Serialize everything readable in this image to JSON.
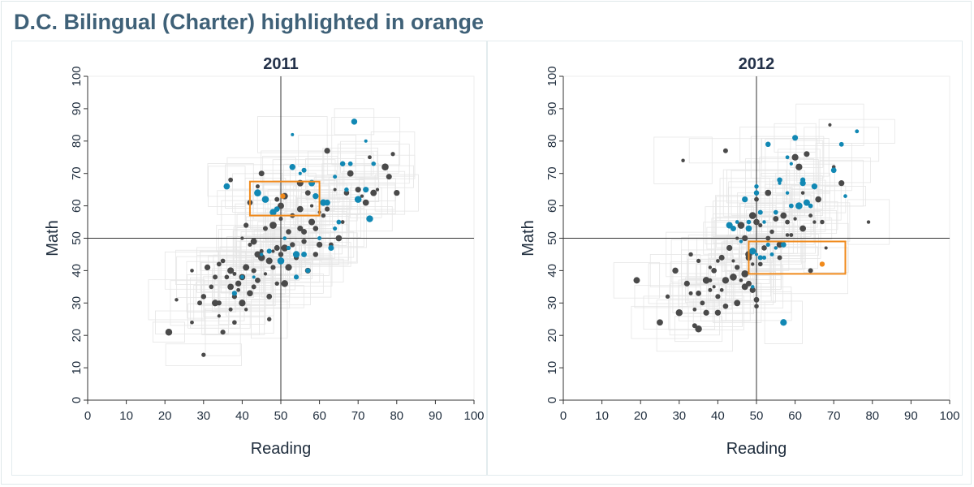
{
  "page": {
    "title": "D.C. Bilingual (Charter) highlighted in orange"
  },
  "colors": {
    "other_school": "#4a4a4a",
    "charter_school": "#1188b4",
    "highlight": "#f08a1c",
    "quadrant_box": "#e6e6e6",
    "axis": "#000000"
  },
  "chart_data": [
    {
      "type": "scatter",
      "title": "2011",
      "xlabel": "Reading",
      "ylabel": "Math",
      "xlim": [
        0,
        100
      ],
      "ylim": [
        0,
        100
      ],
      "xticks": [
        0,
        10,
        20,
        30,
        40,
        50,
        60,
        70,
        80,
        90,
        100
      ],
      "yticks": [
        0,
        10,
        20,
        30,
        40,
        50,
        60,
        70,
        80,
        90,
        100
      ],
      "reference_lines": {
        "x": 50,
        "y": 50
      },
      "highlight": {
        "x": 50.5,
        "y": 63,
        "x_range": [
          42,
          60
        ],
        "y_range": [
          57,
          67.5
        ]
      },
      "series": [
        {
          "group": "other",
          "points": [
            [
              21,
              21
            ],
            [
              23,
              31
            ],
            [
              27,
              24
            ],
            [
              27,
              40
            ],
            [
              29,
              30
            ],
            [
              30,
              32
            ],
            [
              30,
              14
            ],
            [
              31,
              41
            ],
            [
              32,
              35
            ],
            [
              33,
              30
            ],
            [
              33,
              38
            ],
            [
              34,
              30
            ],
            [
              34,
              42
            ],
            [
              34,
              26
            ],
            [
              35,
              21
            ],
            [
              35,
              43
            ],
            [
              36,
              38
            ],
            [
              37,
              28
            ],
            [
              37,
              35
            ],
            [
              37,
              40
            ],
            [
              38,
              39
            ],
            [
              38,
              32
            ],
            [
              38,
              24
            ],
            [
              39,
              36
            ],
            [
              39,
              34
            ],
            [
              40,
              30
            ],
            [
              40,
              38
            ],
            [
              40,
              50
            ],
            [
              41,
              41
            ],
            [
              41,
              28
            ],
            [
              41,
              54
            ],
            [
              42,
              61
            ],
            [
              42,
              48
            ],
            [
              42,
              33
            ],
            [
              43,
              40
            ],
            [
              43,
              49
            ],
            [
              43,
              35
            ],
            [
              44,
              37
            ],
            [
              44,
              45
            ],
            [
              45,
              70
            ],
            [
              45,
              44
            ],
            [
              45,
              46
            ],
            [
              46,
              53
            ],
            [
              46,
              39
            ],
            [
              47,
              32
            ],
            [
              47,
              43
            ],
            [
              47,
              25
            ],
            [
              48,
              54
            ],
            [
              48,
              41
            ],
            [
              48,
              46
            ],
            [
              49,
              62
            ],
            [
              49,
              47
            ],
            [
              49,
              36
            ],
            [
              50,
              60
            ],
            [
              50,
              56
            ],
            [
              50,
              45
            ],
            [
              51,
              47
            ],
            [
              51,
              63
            ],
            [
              51,
              36
            ],
            [
              52,
              52
            ],
            [
              52,
              41
            ],
            [
              53,
              57
            ],
            [
              53,
              48
            ],
            [
              54,
              44
            ],
            [
              55,
              67
            ],
            [
              55,
              59
            ],
            [
              55,
              53
            ],
            [
              56,
              52
            ],
            [
              56,
              49
            ],
            [
              57,
              64
            ],
            [
              57,
              40
            ],
            [
              58,
              55
            ],
            [
              58,
              60
            ],
            [
              59,
              53
            ],
            [
              59,
              45
            ],
            [
              60,
              58
            ],
            [
              60,
              48
            ],
            [
              61,
              57
            ],
            [
              62,
              77
            ],
            [
              62,
              59
            ],
            [
              63,
              48
            ],
            [
              64,
              65
            ],
            [
              65,
              50
            ],
            [
              66,
              55
            ],
            [
              67,
              64
            ],
            [
              68,
              70
            ],
            [
              70,
              65
            ],
            [
              71,
              63
            ],
            [
              72,
              61
            ],
            [
              73,
              75
            ],
            [
              74,
              64
            ],
            [
              75,
              65
            ],
            [
              77,
              72
            ],
            [
              78,
              69
            ],
            [
              79,
              76
            ],
            [
              80,
              64
            ],
            [
              37,
              68
            ],
            [
              44,
              66
            ]
          ]
        },
        {
          "group": "charter",
          "points": [
            [
              36,
              66
            ],
            [
              38,
              33
            ],
            [
              40,
              38
            ],
            [
              43,
              38
            ],
            [
              44,
              64
            ],
            [
              45,
              45
            ],
            [
              46,
              62
            ],
            [
              47,
              46
            ],
            [
              48,
              58
            ],
            [
              49,
              59
            ],
            [
              50,
              43
            ],
            [
              51,
              50
            ],
            [
              52,
              47
            ],
            [
              53,
              72
            ],
            [
              53,
              82
            ],
            [
              54,
              38
            ],
            [
              54,
              45
            ],
            [
              55,
              70
            ],
            [
              56,
              45
            ],
            [
              56,
              71
            ],
            [
              57,
              40
            ],
            [
              58,
              67
            ],
            [
              59,
              63
            ],
            [
              60,
              50
            ],
            [
              61,
              61
            ],
            [
              62,
              61
            ],
            [
              63,
              47
            ],
            [
              64,
              69
            ],
            [
              64,
              53
            ],
            [
              65,
              55
            ],
            [
              66,
              73
            ],
            [
              67,
              65
            ],
            [
              68,
              73
            ],
            [
              68,
              73
            ],
            [
              69,
              86
            ],
            [
              70,
              62
            ],
            [
              72,
              65
            ],
            [
              72,
              80
            ],
            [
              73,
              56
            ],
            [
              74,
              73
            ]
          ]
        }
      ]
    },
    {
      "type": "scatter",
      "title": "2012",
      "xlabel": "Reading",
      "ylabel": "Math",
      "xlim": [
        0,
        100
      ],
      "ylim": [
        0,
        100
      ],
      "xticks": [
        0,
        10,
        20,
        30,
        40,
        50,
        60,
        70,
        80,
        90,
        100
      ],
      "yticks": [
        0,
        10,
        20,
        30,
        40,
        50,
        60,
        70,
        80,
        90,
        100
      ],
      "reference_lines": {
        "x": 50,
        "y": 50
      },
      "highlight": {
        "x": 67,
        "y": 42,
        "x_range": [
          48,
          73
        ],
        "y_range": [
          39,
          49
        ]
      },
      "series": [
        {
          "group": "other",
          "points": [
            [
              19,
              37
            ],
            [
              25,
              24
            ],
            [
              27,
              32
            ],
            [
              29,
              40
            ],
            [
              30,
              27
            ],
            [
              31,
              74
            ],
            [
              32,
              36
            ],
            [
              33,
              33
            ],
            [
              33,
              45
            ],
            [
              34,
              28
            ],
            [
              34,
              23
            ],
            [
              35,
              33
            ],
            [
              35,
              43
            ],
            [
              35,
              22
            ],
            [
              36,
              30
            ],
            [
              37,
              37
            ],
            [
              37,
              27
            ],
            [
              38,
              37
            ],
            [
              38,
              41
            ],
            [
              38,
              34
            ],
            [
              39,
              35
            ],
            [
              39,
              40
            ],
            [
              40,
              32
            ],
            [
              40,
              27
            ],
            [
              40,
              43
            ],
            [
              41,
              44
            ],
            [
              41,
              34
            ],
            [
              42,
              37
            ],
            [
              42,
              29
            ],
            [
              42,
              77
            ],
            [
              43,
              47
            ],
            [
              44,
              38
            ],
            [
              44,
              43
            ],
            [
              45,
              41
            ],
            [
              45,
              50
            ],
            [
              45,
              30
            ],
            [
              46,
              37
            ],
            [
              46,
              54
            ],
            [
              47,
              39
            ],
            [
              47,
              35
            ],
            [
              47,
              50
            ],
            [
              48,
              45
            ],
            [
              48,
              44
            ],
            [
              48,
              36
            ],
            [
              49,
              34
            ],
            [
              49,
              42
            ],
            [
              49,
              57
            ],
            [
              50,
              62
            ],
            [
              50,
              55
            ],
            [
              50,
              29
            ],
            [
              50,
              31
            ],
            [
              51,
              54
            ],
            [
              51,
              42
            ],
            [
              52,
              47
            ],
            [
              53,
              50
            ],
            [
              53,
              64
            ],
            [
              54,
              52
            ],
            [
              55,
              56
            ],
            [
              55,
              47
            ],
            [
              56,
              48
            ],
            [
              56,
              44
            ],
            [
              57,
              57
            ],
            [
              58,
              51
            ],
            [
              58,
              55
            ],
            [
              59,
              51
            ],
            [
              60,
              56
            ],
            [
              60,
              75
            ],
            [
              61,
              72
            ],
            [
              62,
              53
            ],
            [
              62,
              64
            ],
            [
              63,
              76
            ],
            [
              63,
              61
            ],
            [
              64,
              57
            ],
            [
              64,
              40
            ],
            [
              65,
              55
            ],
            [
              66,
              62
            ],
            [
              67,
              55
            ],
            [
              68,
              47
            ],
            [
              69,
              85
            ],
            [
              70,
              72
            ],
            [
              72,
              67
            ],
            [
              79,
              55
            ]
          ]
        },
        {
          "group": "charter",
          "points": [
            [
              43,
              54
            ],
            [
              44,
              53
            ],
            [
              45,
              55
            ],
            [
              46,
              49
            ],
            [
              47,
              62
            ],
            [
              48,
              55
            ],
            [
              48,
              53
            ],
            [
              49,
              46
            ],
            [
              49,
              35
            ],
            [
              50,
              64
            ],
            [
              50,
              66
            ],
            [
              50,
              45
            ],
            [
              51,
              58
            ],
            [
              51,
              44
            ],
            [
              52,
              44
            ],
            [
              52,
              55
            ],
            [
              53,
              48
            ],
            [
              53,
              79
            ],
            [
              54,
              45
            ],
            [
              55,
              47
            ],
            [
              55,
              58
            ],
            [
              56,
              67
            ],
            [
              56,
              68
            ],
            [
              57,
              48
            ],
            [
              57,
              24
            ],
            [
              58,
              64
            ],
            [
              58,
              75
            ],
            [
              59,
              60
            ],
            [
              59,
              73
            ],
            [
              60,
              81
            ],
            [
              61,
              60
            ],
            [
              62,
              68
            ],
            [
              62,
              67
            ],
            [
              63,
              61
            ],
            [
              64,
              60
            ],
            [
              65,
              66
            ],
            [
              70,
              71
            ],
            [
              72,
              79
            ],
            [
              73,
              63
            ],
            [
              76,
              83
            ]
          ]
        }
      ]
    }
  ]
}
